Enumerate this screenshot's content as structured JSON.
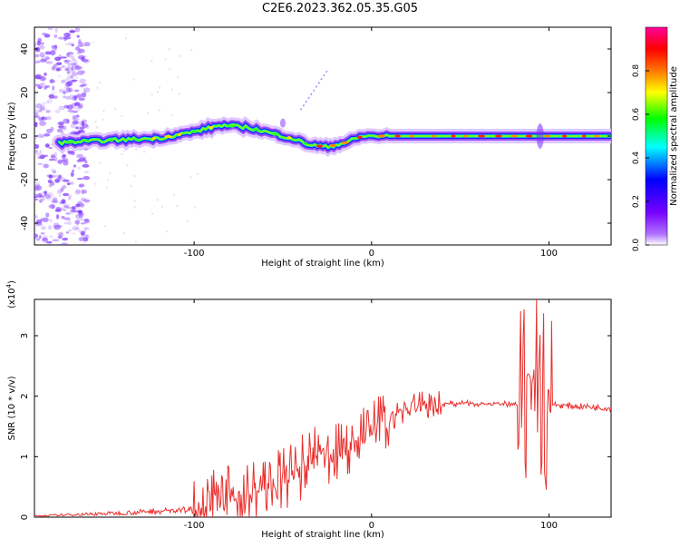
{
  "figure": {
    "title": "C2E6.2023.362.05.35.G05"
  },
  "chart_data": [
    {
      "type": "heatmap",
      "xlabel": "Height of straight line (km)",
      "ylabel": "Frequency (Hz)",
      "xlim": [
        -190,
        135
      ],
      "ylim": [
        -50,
        50
      ],
      "x_ticks": [
        -100,
        0,
        100
      ],
      "y_ticks": [
        -40,
        -20,
        0,
        20,
        40
      ],
      "colorbar": {
        "label": "Normalized spectral amplitude",
        "range": [
          0.0,
          1.0
        ],
        "ticks": [
          "0.0",
          "0.2",
          "0.4",
          "0.6",
          "0.8"
        ],
        "colors": [
          "#ffffff",
          "#7700ff",
          "#0000ff",
          "#00ffff",
          "#00ff00",
          "#ffff00",
          "#ff7700",
          "#ff0000",
          "#ff00aa"
        ]
      },
      "ridge_frequency_hz": {
        "x": [
          -175,
          -150,
          -120,
          -100,
          -85,
          -70,
          -55,
          -45,
          -35,
          -25,
          -15,
          -5,
          10,
          30,
          60,
          90,
          100,
          135
        ],
        "y": [
          -3,
          -2,
          -1,
          2,
          5,
          4,
          1,
          -1,
          -4,
          -5,
          -3,
          0,
          0,
          0,
          0,
          0,
          0,
          0
        ]
      }
    },
    {
      "type": "line",
      "xlabel": "Height of straight line (km)",
      "ylabel": "SNR (10 * v/v)",
      "y_multiplier": "(x10",
      "y_multiplier_exp": "4",
      "y_multiplier_close": ")",
      "xlim": [
        -190,
        135
      ],
      "ylim": [
        0,
        3.6
      ],
      "x_ticks": [
        -100,
        0,
        100
      ],
      "y_ticks": [
        0,
        1,
        2,
        3
      ],
      "color": "#e8302e",
      "series": [
        {
          "x": [
            -190,
            -160,
            -140,
            -120,
            -100,
            -90,
            -80,
            -70,
            -60,
            -50,
            -40,
            -30,
            -20,
            -10,
            0,
            10,
            20,
            30,
            40,
            50,
            60,
            70,
            80,
            85,
            90,
            95,
            100,
            105,
            110,
            120,
            135
          ],
          "y": [
            0.02,
            0.05,
            0.07,
            0.1,
            0.12,
            0.25,
            0.3,
            0.4,
            0.5,
            0.6,
            0.8,
            1.0,
            1.05,
            1.2,
            1.45,
            1.65,
            1.8,
            1.85,
            1.87,
            1.88,
            1.88,
            1.87,
            1.86,
            1.8,
            2.0,
            2.3,
            1.9,
            1.85,
            1.84,
            1.83,
            1.8
          ]
        }
      ]
    }
  ]
}
